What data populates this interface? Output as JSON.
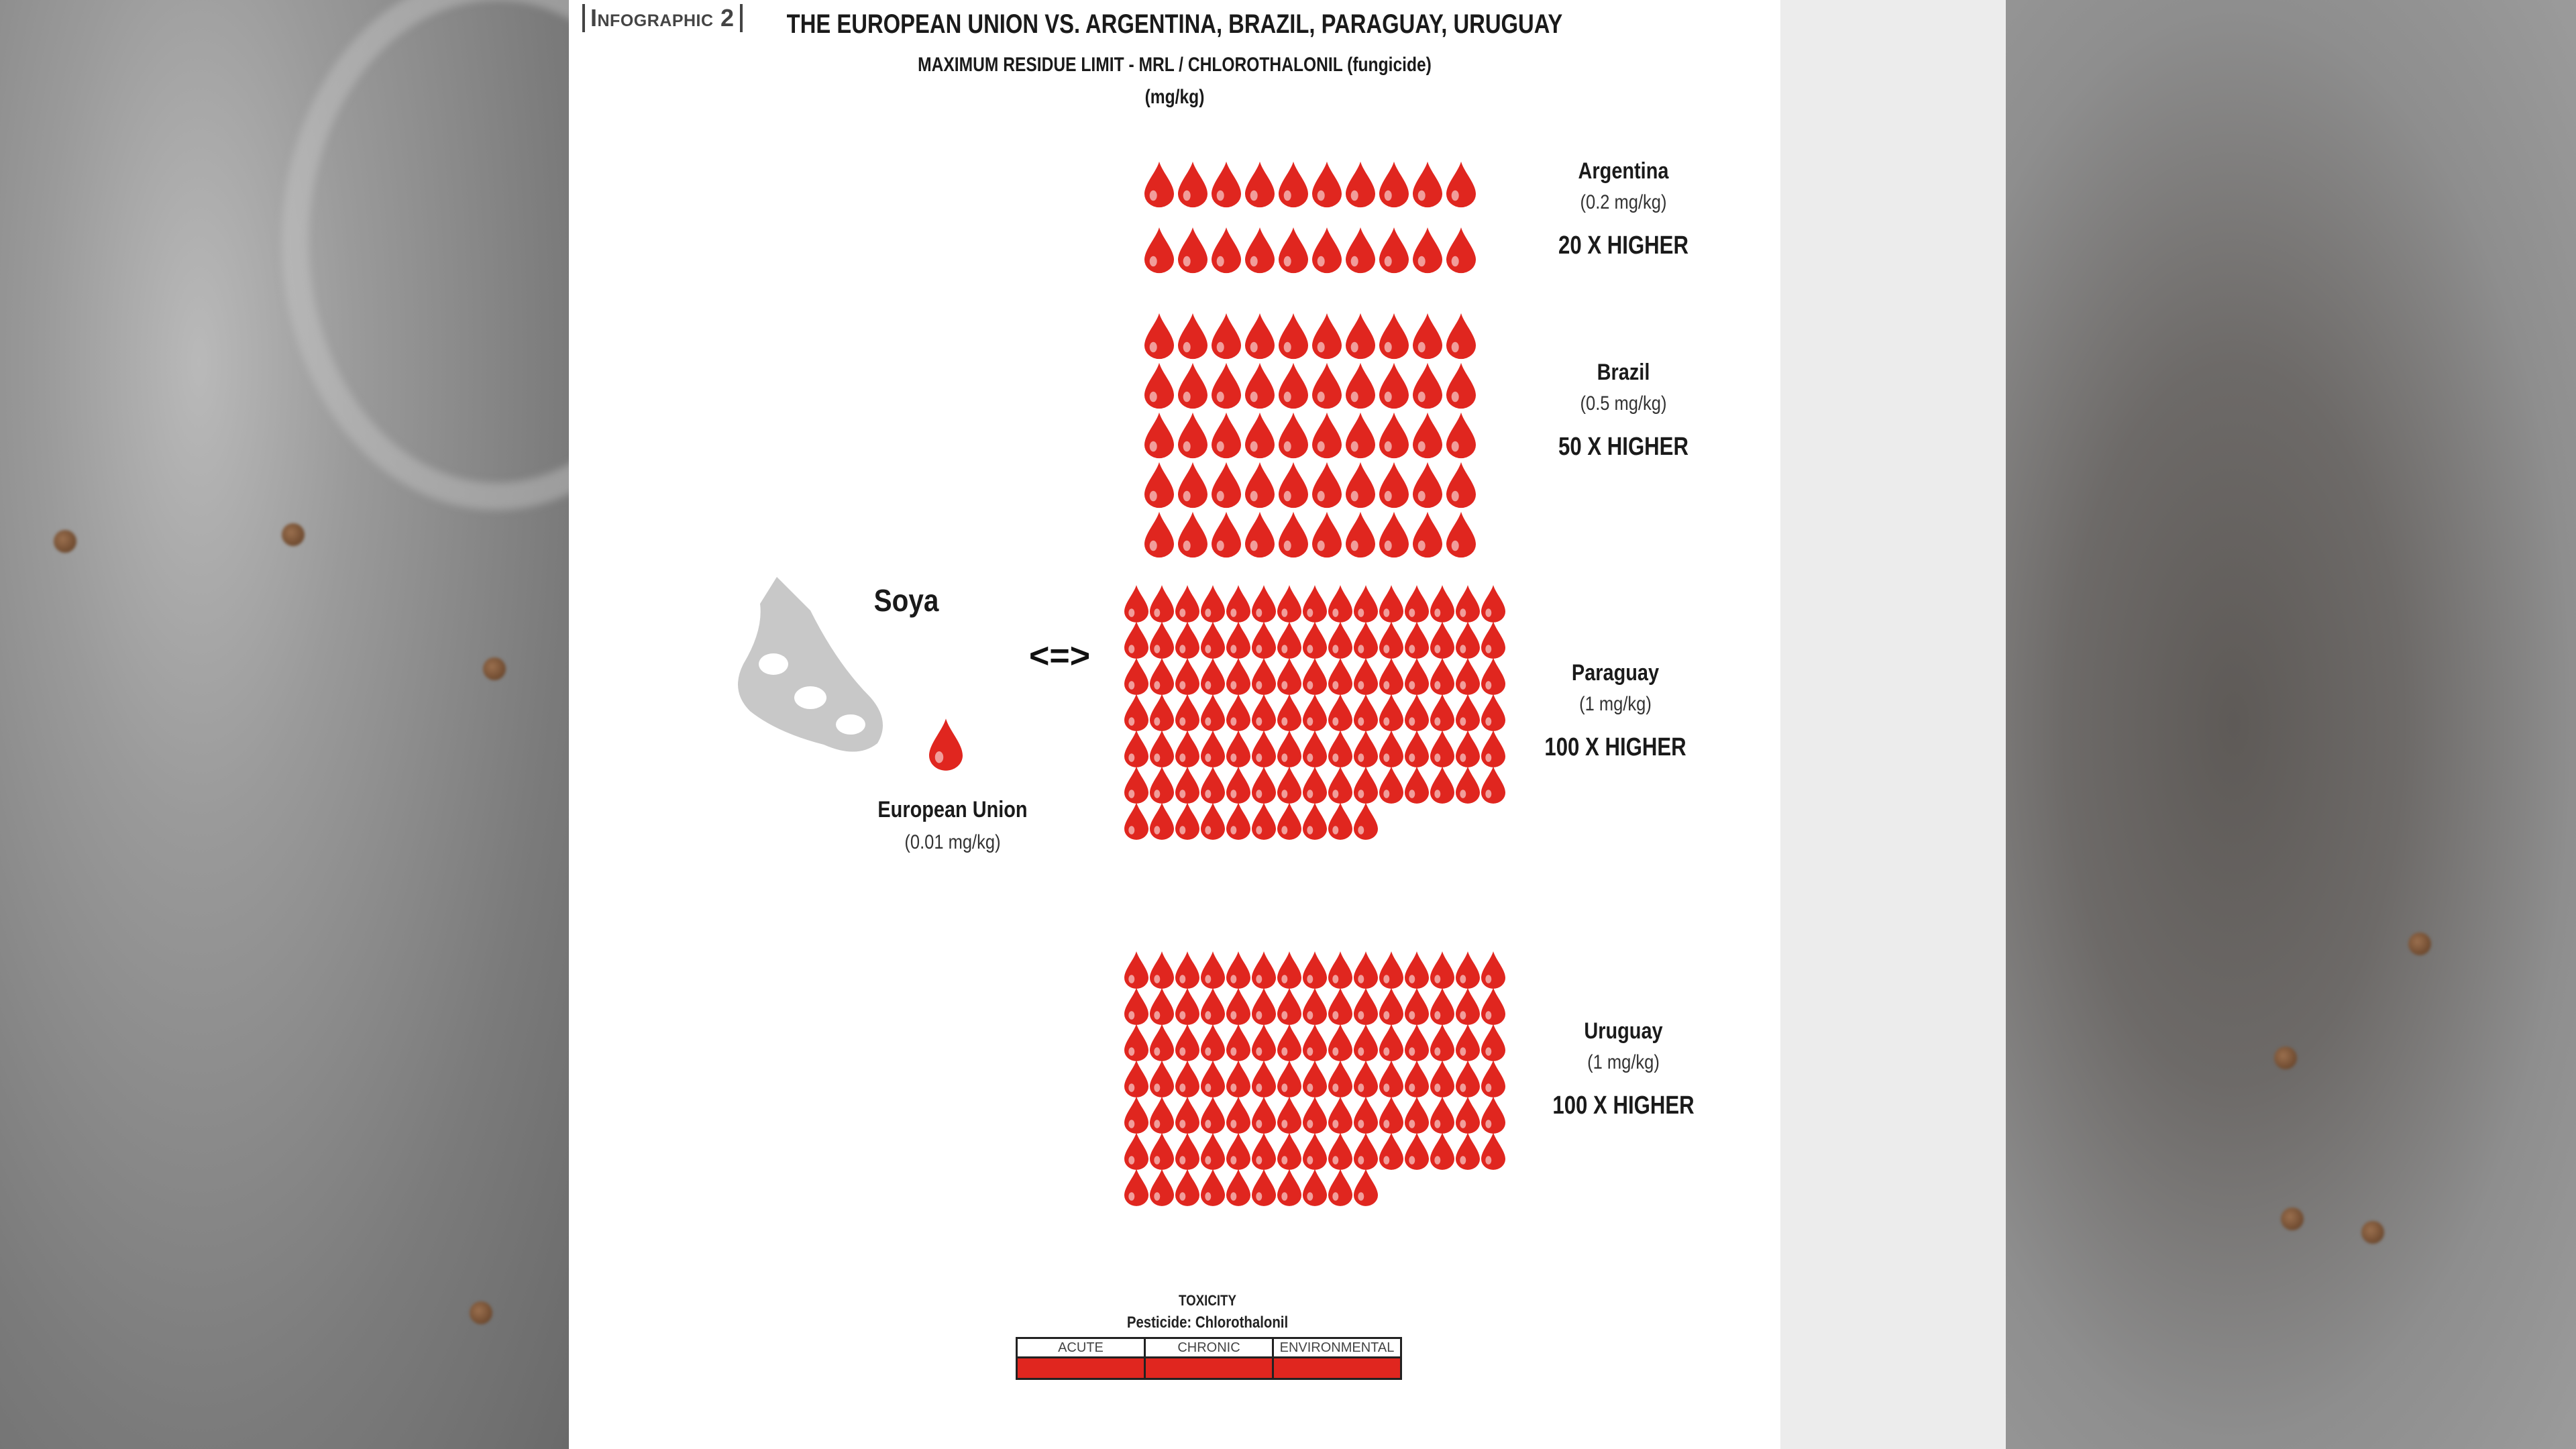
{
  "tag": "Infographic 2",
  "title": "THE EUROPEAN UNION VS. ARGENTINA, BRAZIL, PARAGUAY, URUGUAY",
  "subtitle": "MAXIMUM RESIDUE LIMIT - MRL / CHLOROTHALONIL (fungicide)",
  "unit": "(mg/kg)",
  "crop": "Soya",
  "compare_symbol": "<=>",
  "eu": {
    "name": "European Union",
    "value": "(0.01 mg/kg)",
    "drops": 1
  },
  "countries": [
    {
      "name": "Argentina",
      "value": "(0.2 mg/kg)",
      "multiplier": "20 X HIGHER",
      "drops": 20
    },
    {
      "name": "Brazil",
      "value": "(0.5 mg/kg)",
      "multiplier": "50 X HIGHER",
      "drops": 50
    },
    {
      "name": "Paraguay",
      "value": "(1 mg/kg)",
      "multiplier": "100 X HIGHER",
      "drops": 100
    },
    {
      "name": "Uruguay",
      "value": "(1 mg/kg)",
      "multiplier": "100 X HIGHER",
      "drops": 100
    }
  ],
  "toxicity": {
    "title": "TOXICITY",
    "pesticide": "Pesticide: Chlorothalonil",
    "columns": [
      "ACUTE",
      "CHRONIC",
      "ENVIRONMENTAL"
    ]
  },
  "colors": {
    "drop": "#e0261f",
    "soy": "#c8c8c8",
    "text": "#1a1a1a"
  }
}
